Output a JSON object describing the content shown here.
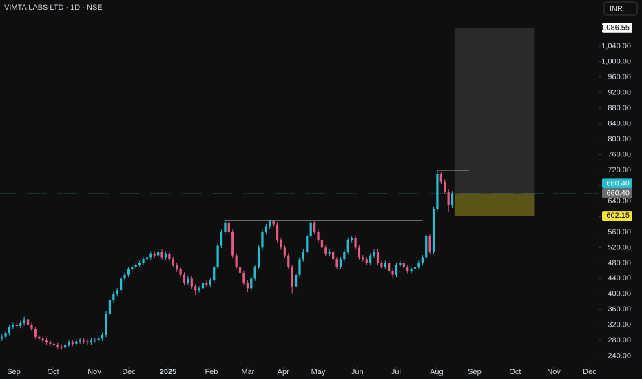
{
  "chart_data": {
    "type": "candlestick",
    "title": "VIMTA LABS LTD · 1D · NSE",
    "currency": "INR",
    "up_color": "#2bbbd0",
    "down_color": "#e35a86",
    "open": [
      285,
      290,
      300,
      315,
      320,
      318,
      325,
      335,
      320,
      310,
      290,
      285,
      280,
      275,
      272,
      268,
      265,
      262,
      270,
      275,
      272,
      278,
      280,
      278,
      275,
      280,
      282,
      285,
      295,
      350,
      385,
      400,
      410,
      440,
      450,
      465,
      470,
      475,
      480,
      490,
      495,
      505,
      500,
      510,
      495,
      505,
      490,
      475,
      465,
      450,
      430,
      440,
      420,
      410,
      415,
      430,
      425,
      435,
      470,
      525,
      560,
      585,
      560,
      500,
      470,
      455,
      430,
      415,
      440,
      470,
      520,
      560,
      575,
      590,
      580,
      540,
      520,
      500,
      470,
      420,
      450,
      490,
      510,
      550,
      585,
      560,
      540,
      520,
      505,
      510,
      490,
      470,
      490,
      510,
      540,
      545,
      520,
      495,
      490,
      480,
      500,
      510,
      480,
      470,
      480,
      460,
      450,
      475,
      480,
      470,
      460,
      465,
      470,
      480,
      495,
      550,
      510,
      620,
      710,
      690,
      665,
      630
    ],
    "high": [
      296,
      306,
      321,
      326,
      326,
      331,
      342,
      341,
      326,
      316,
      296,
      291,
      286,
      281,
      278,
      274,
      271,
      276,
      281,
      281,
      284,
      286,
      286,
      284,
      286,
      288,
      291,
      301,
      356,
      391,
      406,
      416,
      446,
      456,
      471,
      476,
      481,
      486,
      496,
      501,
      511,
      511,
      516,
      516,
      511,
      511,
      496,
      481,
      471,
      456,
      446,
      446,
      426,
      421,
      436,
      436,
      441,
      476,
      531,
      566,
      592,
      591,
      566,
      506,
      476,
      461,
      436,
      446,
      476,
      526,
      566,
      581,
      592,
      592,
      586,
      546,
      526,
      506,
      476,
      456,
      496,
      516,
      556,
      592,
      591,
      566,
      546,
      526,
      516,
      516,
      496,
      496,
      516,
      546,
      551,
      551,
      526,
      501,
      496,
      506,
      516,
      516,
      486,
      486,
      486,
      466,
      481,
      486,
      486,
      476,
      471,
      476,
      486,
      501,
      556,
      556,
      626,
      722,
      716,
      696,
      671,
      666
    ],
    "low": [
      279,
      284,
      294,
      309,
      312,
      312,
      319,
      314,
      304,
      284,
      279,
      274,
      269,
      266,
      262,
      259,
      256,
      256,
      264,
      266,
      266,
      272,
      272,
      269,
      269,
      274,
      276,
      279,
      289,
      344,
      379,
      394,
      404,
      434,
      444,
      459,
      464,
      469,
      474,
      484,
      489,
      494,
      494,
      489,
      489,
      484,
      469,
      459,
      444,
      424,
      424,
      414,
      398,
      404,
      409,
      419,
      419,
      429,
      464,
      519,
      554,
      554,
      494,
      464,
      449,
      424,
      405,
      409,
      434,
      464,
      514,
      554,
      569,
      574,
      534,
      514,
      494,
      464,
      402,
      414,
      444,
      484,
      504,
      544,
      554,
      534,
      514,
      499,
      499,
      484,
      464,
      464,
      484,
      504,
      534,
      514,
      489,
      484,
      474,
      474,
      494,
      474,
      464,
      464,
      454,
      440,
      444,
      469,
      464,
      454,
      454,
      459,
      464,
      474,
      489,
      504,
      504,
      614,
      684,
      659,
      612,
      622
    ],
    "close": [
      290,
      300,
      315,
      320,
      318,
      325,
      335,
      320,
      310,
      290,
      285,
      280,
      275,
      272,
      268,
      265,
      262,
      270,
      275,
      272,
      278,
      280,
      278,
      275,
      280,
      282,
      285,
      295,
      350,
      385,
      400,
      410,
      440,
      450,
      465,
      470,
      475,
      480,
      490,
      495,
      505,
      500,
      510,
      495,
      505,
      490,
      475,
      465,
      450,
      430,
      440,
      420,
      410,
      415,
      430,
      425,
      435,
      470,
      525,
      560,
      585,
      560,
      500,
      470,
      455,
      430,
      415,
      440,
      470,
      520,
      560,
      575,
      590,
      580,
      540,
      520,
      500,
      470,
      420,
      450,
      490,
      510,
      550,
      585,
      560,
      540,
      520,
      505,
      510,
      490,
      470,
      490,
      510,
      540,
      545,
      520,
      495,
      490,
      480,
      500,
      510,
      480,
      470,
      480,
      460,
      450,
      475,
      480,
      470,
      460,
      465,
      470,
      480,
      495,
      550,
      510,
      620,
      710,
      690,
      665,
      630,
      660.4
    ],
    "xlim": [
      -0.5,
      160.5
    ],
    "xticks": [
      {
        "value": 3.2,
        "label": "Sep"
      },
      {
        "value": 13.75,
        "label": "Oct"
      },
      {
        "value": 24.85,
        "label": "Nov"
      },
      {
        "value": 34.1,
        "label": "Dec"
      },
      {
        "value": 44.65,
        "label": "2025"
      },
      {
        "value": 56.3,
        "label": "Feb"
      },
      {
        "value": 66.1,
        "label": "Mar"
      },
      {
        "value": 75.6,
        "label": "Apr"
      },
      {
        "value": 85,
        "label": "May"
      },
      {
        "value": 95.5,
        "label": "Jun"
      },
      {
        "value": 105.9,
        "label": "Jul"
      },
      {
        "value": 116.8,
        "label": "Aug"
      },
      {
        "value": 127,
        "label": "Sep"
      },
      {
        "value": 137.9,
        "label": "Oct"
      },
      {
        "value": 148.3,
        "label": "Nov"
      },
      {
        "value": 157.9,
        "label": "Dec"
      }
    ],
    "ylim": [
      213,
      1159
    ],
    "yticks": [
      {
        "value": 240,
        "label": "240.00"
      },
      {
        "value": 280,
        "label": "280.00"
      },
      {
        "value": 320,
        "label": "320.00"
      },
      {
        "value": 360,
        "label": "360.00"
      },
      {
        "value": 400,
        "label": "400.00"
      },
      {
        "value": 440,
        "label": "440.00"
      },
      {
        "value": 480,
        "label": "480.00"
      },
      {
        "value": 520,
        "label": "520.00"
      },
      {
        "value": 560,
        "label": "560.00"
      },
      {
        "value": 600,
        "label": "600.00"
      },
      {
        "value": 640,
        "label": "640.00"
      },
      {
        "value": 680,
        "label": "680.00"
      },
      {
        "value": 720,
        "label": "720.00"
      },
      {
        "value": 760,
        "label": "760.00"
      },
      {
        "value": 800,
        "label": "800.00"
      },
      {
        "value": 840,
        "label": "840.00"
      },
      {
        "value": 880,
        "label": "880.00"
      },
      {
        "value": 920,
        "label": "920.00"
      },
      {
        "value": 960,
        "label": "960.00"
      },
      {
        "value": 1000,
        "label": "1,000.00"
      },
      {
        "value": 1040,
        "label": "1,040.00"
      }
    ],
    "levels": [
      {
        "value": 590,
        "x": [
          60,
          113
        ]
      },
      {
        "value": 720,
        "x": [
          117,
          125.5
        ]
      }
    ],
    "position": {
      "x": [
        121.6,
        143
      ],
      "target": {
        "value": 1086.55,
        "label": "1,086.55"
      },
      "entry": {
        "value": 660.4,
        "label": "660.40"
      },
      "stop": {
        "value": 602.15,
        "label": "602.15"
      }
    },
    "last_price": {
      "value": 660.4,
      "label": "660.40"
    }
  }
}
